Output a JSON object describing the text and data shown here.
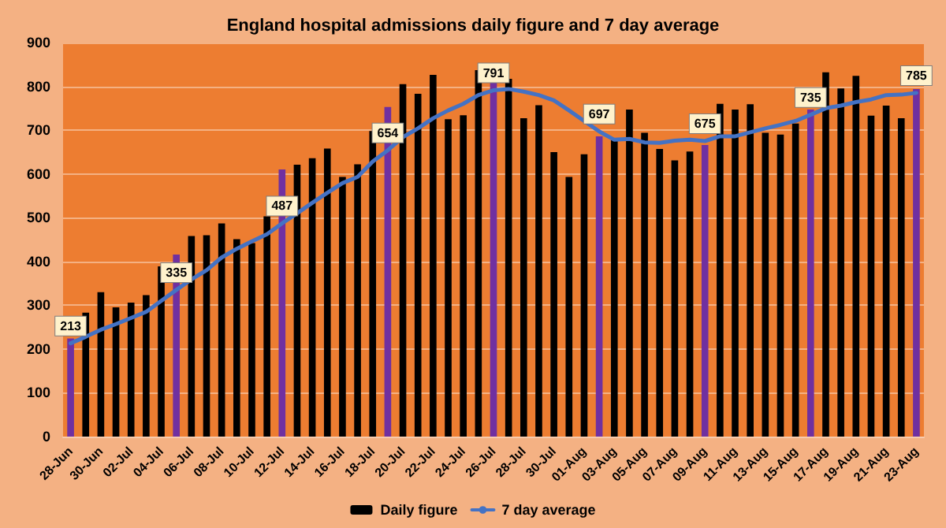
{
  "chart_data": {
    "type": "bar",
    "title": "England hospital admissions daily figure and 7 day average",
    "categories": [
      "28-Jun",
      null,
      "30-Jun",
      null,
      "02-Jul",
      null,
      "04-Jul",
      null,
      "06-Jul",
      null,
      "08-Jul",
      null,
      "10-Jul",
      null,
      "12-Jul",
      null,
      "14-Jul",
      null,
      "16-Jul",
      null,
      "18-Jul",
      null,
      "20-Jul",
      null,
      "22-Jul",
      null,
      "24-Jul",
      null,
      "26-Jul",
      null,
      "28-Jul",
      null,
      "30-Jul",
      null,
      "01-Aug",
      null,
      "03-Aug",
      null,
      "05-Aug",
      null,
      "07-Aug",
      null,
      "09-Aug",
      null,
      "11-Aug",
      null,
      "13-Aug",
      null,
      "15-Aug",
      null,
      "17-Aug",
      null,
      "19-Aug",
      null,
      "21-Aug",
      null,
      "23-Aug"
    ],
    "series": [
      {
        "name": "Daily figure",
        "color": "#000000",
        "colors": [
          "#7030a0",
          "#000000",
          "#000000",
          "#000000",
          "#000000",
          "#000000",
          "#000000",
          "#7030a0",
          "#000000",
          "#000000",
          "#000000",
          "#000000",
          "#000000",
          "#000000",
          "#7030a0",
          "#000000",
          "#000000",
          "#000000",
          "#000000",
          "#000000",
          "#000000",
          "#7030a0",
          "#000000",
          "#000000",
          "#000000",
          "#000000",
          "#000000",
          "#000000",
          "#7030a0",
          "#000000",
          "#000000",
          "#000000",
          "#000000",
          "#000000",
          "#000000",
          "#7030a0",
          "#000000",
          "#000000",
          "#000000",
          "#000000",
          "#000000",
          "#000000",
          "#7030a0",
          "#000000",
          "#000000",
          "#000000",
          "#000000",
          "#000000",
          "#000000",
          "#7030a0",
          "#000000",
          "#000000",
          "#000000",
          "#000000",
          "#000000",
          "#000000",
          "#7030a0"
        ],
        "values": [
          224,
          283,
          330,
          295,
          306,
          323,
          389,
          416,
          458,
          460,
          487,
          451,
          442,
          503,
          610,
          621,
          636,
          658,
          593,
          622,
          698,
          753,
          805,
          783,
          826,
          725,
          734,
          837,
          815,
          817,
          727,
          757,
          650,
          593,
          645,
          686,
          678,
          747,
          694,
          657,
          631,
          651,
          666,
          760,
          747,
          759,
          694,
          690,
          715,
          747,
          832,
          795,
          824,
          733,
          756,
          727,
          794
        ]
      },
      {
        "name": "7 day average",
        "type": "line",
        "color": "#4472c4",
        "values": [
          213,
          228,
          244,
          257,
          271,
          285,
          310,
          335,
          359,
          380,
          409,
          429,
          446,
          462,
          487,
          510,
          534,
          557,
          579,
          593,
          628,
          654,
          684,
          704,
          727,
          745,
          760,
          780,
          791,
          794,
          788,
          780,
          768,
          745,
          721,
          697,
          678,
          680,
          672,
          671,
          676,
          678,
          675,
          686,
          686,
          695,
          704,
          712,
          721,
          735,
          750,
          756,
          764,
          770,
          780,
          781,
          785
        ],
        "value_labels": [
          "213",
          null,
          null,
          null,
          null,
          null,
          null,
          "335",
          null,
          null,
          null,
          null,
          null,
          null,
          "487",
          null,
          null,
          null,
          null,
          null,
          null,
          "654",
          null,
          null,
          null,
          null,
          null,
          null,
          "791",
          null,
          null,
          null,
          null,
          null,
          null,
          "697",
          null,
          null,
          null,
          null,
          null,
          null,
          "675",
          null,
          null,
          null,
          null,
          null,
          null,
          "735",
          null,
          null,
          null,
          null,
          null,
          null,
          "785"
        ]
      }
    ],
    "ylim": [
      0,
      900
    ],
    "yticks": [
      0,
      100,
      200,
      300,
      400,
      500,
      600,
      700,
      800,
      900
    ],
    "grid": "y",
    "legend": "bottom",
    "marker": "none",
    "line_style": "solid"
  }
}
